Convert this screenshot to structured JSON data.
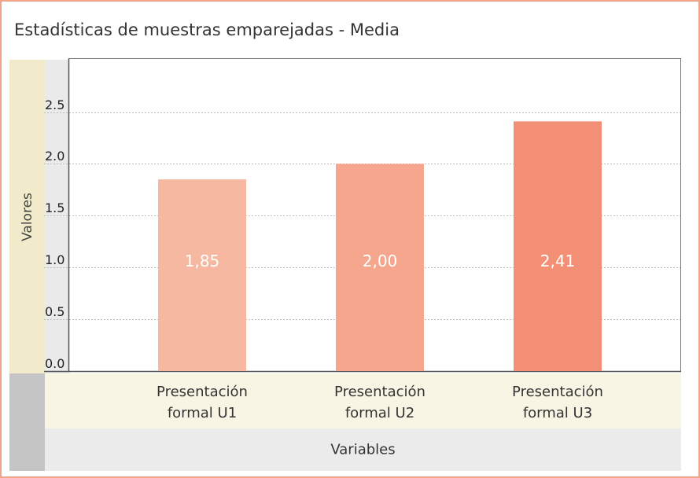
{
  "chart_data": {
    "type": "bar",
    "title": "Estadísticas de muestras emparejadas - Media",
    "xlabel": "Variables",
    "ylabel": "Valores",
    "categories": [
      [
        "Presentación",
        "formal U1"
      ],
      [
        "Presentación",
        "formal U2"
      ],
      [
        "Presentación",
        "formal U3"
      ]
    ],
    "values": [
      1.85,
      2.0,
      2.41
    ],
    "value_labels": [
      "1,85",
      "2,00",
      "2,41"
    ],
    "bar_colors": [
      "#f7b8a2",
      "#f5a68d",
      "#f28f75"
    ],
    "yticks": [
      0.0,
      0.5,
      1.0,
      1.5,
      2.0,
      2.5
    ],
    "ytick_labels": [
      "0.0",
      "0.5",
      "1.0",
      "1.5",
      "2.0",
      "2.5"
    ],
    "ylim": [
      0,
      3.0
    ],
    "grid": true,
    "legend": "none"
  }
}
